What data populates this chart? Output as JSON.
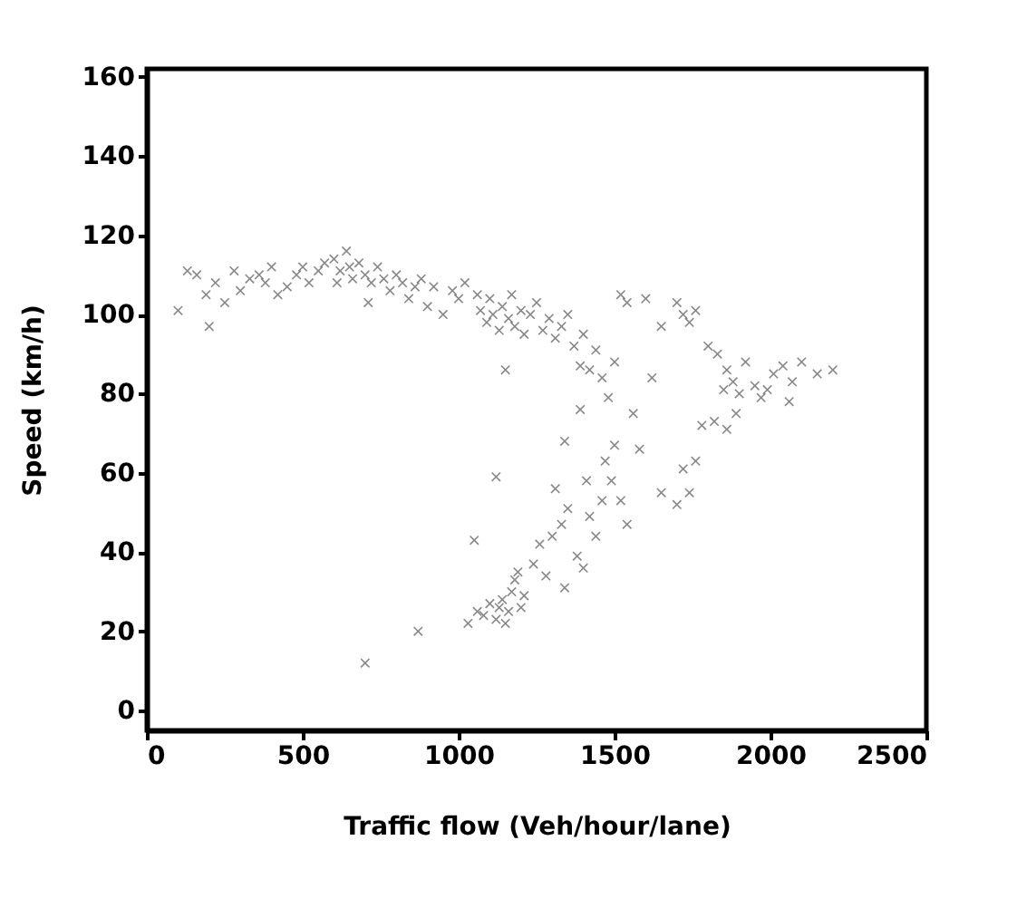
{
  "chart_data": {
    "type": "scatter",
    "xlabel": "Traffic flow (Veh/hour/lane)",
    "ylabel": "Speed (km/h)",
    "xlim": [
      0,
      2500
    ],
    "xticks": [
      0,
      500,
      1000,
      1500,
      2000,
      2500
    ],
    "ylim": [
      -5,
      162
    ],
    "yticks": [
      0,
      20,
      40,
      60,
      80,
      100,
      120,
      140,
      160
    ],
    "grid": false,
    "marker": "cross",
    "series": [
      {
        "color": "#555555",
        "x": [
          100,
          130,
          160,
          190,
          200,
          220,
          250,
          280,
          300,
          330,
          360,
          380,
          400,
          420,
          450,
          480,
          500,
          520,
          550,
          570,
          600,
          610,
          620,
          640,
          650,
          660,
          680,
          700,
          710,
          720,
          740,
          760,
          780,
          800,
          820,
          840,
          860,
          880,
          900,
          920,
          950,
          980,
          1000,
          1020,
          1060,
          1070,
          1090,
          1100,
          1110,
          1130,
          1140,
          1160,
          1170,
          1180,
          1200,
          1210,
          1230,
          1250,
          1270,
          1290,
          1310,
          1330,
          1350,
          1370,
          1390,
          1400,
          1420,
          1440,
          1460,
          1480,
          1500,
          1520,
          1540,
          1600,
          1650,
          1700,
          1720,
          1740,
          1760,
          1620,
          1150,
          1800,
          1830,
          1860,
          1880,
          1900,
          1920,
          1950,
          1970,
          1990,
          2010,
          2040,
          2060,
          2100,
          2150,
          2200,
          1780,
          1820,
          1860,
          1890,
          1850,
          2070,
          700,
          870,
          1050,
          1120,
          1030,
          1060,
          1080,
          1100,
          1120,
          1130,
          1140,
          1150,
          1160,
          1170,
          1180,
          1190,
          1200,
          1210,
          1240,
          1260,
          1280,
          1300,
          1310,
          1330,
          1340,
          1350,
          1380,
          1400,
          1410,
          1420,
          1440,
          1460,
          1470,
          1490,
          1500,
          1520,
          1540,
          1560,
          1580,
          1650,
          1700,
          1720,
          1740,
          1760,
          1340,
          1390
        ],
        "values": [
          101,
          111,
          110,
          105,
          97,
          108,
          103,
          111,
          106,
          109,
          110,
          108,
          112,
          105,
          107,
          110,
          112,
          108,
          111,
          113,
          114,
          108,
          111,
          116,
          112,
          109,
          113,
          110,
          103,
          108,
          112,
          109,
          106,
          110,
          108,
          104,
          107,
          109,
          102,
          107,
          100,
          106,
          104,
          108,
          105,
          101,
          98,
          104,
          100,
          96,
          102,
          99,
          105,
          97,
          101,
          95,
          100,
          103,
          96,
          99,
          94,
          97,
          100,
          92,
          87,
          95,
          86,
          91,
          84,
          79,
          88,
          105,
          103,
          104,
          97,
          103,
          100,
          98,
          101,
          84,
          86,
          92,
          90,
          86,
          83,
          80,
          88,
          82,
          79,
          81,
          85,
          87,
          78,
          88,
          85,
          86,
          72,
          73,
          71,
          75,
          81,
          83,
          12,
          20,
          43,
          59,
          22,
          25,
          24,
          27,
          23,
          26,
          28,
          22,
          25,
          30,
          33,
          35,
          26,
          29,
          37,
          42,
          34,
          44,
          56,
          47,
          31,
          51,
          39,
          36,
          58,
          49,
          44,
          53,
          63,
          58,
          67,
          53,
          47,
          75,
          66,
          55,
          52,
          61,
          55,
          63,
          68,
          76
        ]
      }
    ]
  }
}
